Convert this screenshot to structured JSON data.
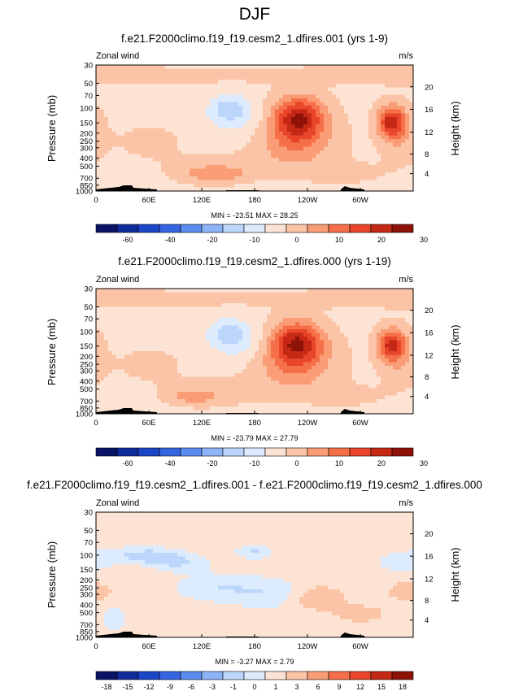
{
  "figure": {
    "title": "DJF"
  },
  "palette_common": [
    "#0a1466",
    "#0f2b9a",
    "#1c46c8",
    "#3464e0",
    "#5a8cf0",
    "#8db4f8",
    "#bcd6fb",
    "#dcebfd",
    "#fde3d4",
    "#fcc4a6",
    "#fa9c76",
    "#f57048",
    "#e8452a",
    "#c52815",
    "#8f1209"
  ],
  "chart_data": [
    {
      "type": "heatmap",
      "id": "p1",
      "title": "f.e21.F2000climo.f19_f19.cesm2_1.dfires.001 (yrs 1-9)",
      "left_label": "Zonal wind",
      "right_label": "m/s",
      "ylabel": "Pressure (mb)",
      "ylabel_right": "Height (km)",
      "stats": "MIN = -23.51   MAX = 28.25",
      "x_ticks": [
        "0",
        "60E",
        "120E",
        "180",
        "120W",
        "60W"
      ],
      "x_tick_values": [
        0,
        60,
        120,
        180,
        240,
        300
      ],
      "x_range": [
        0,
        360
      ],
      "y_ticks": [
        "30",
        "50",
        "70",
        "100",
        "150",
        "200",
        "250",
        "300",
        "400",
        "500",
        "700",
        "850",
        "1000"
      ],
      "y_tick_values": [
        30,
        50,
        70,
        100,
        150,
        200,
        250,
        300,
        400,
        500,
        700,
        850,
        1000
      ],
      "y_range": [
        30,
        1000
      ],
      "y_scale": "log",
      "height_ticks": [
        "20",
        "16",
        "12",
        "8",
        "4"
      ],
      "colorbar_labels": [
        "-60",
        "-40",
        "-20",
        "-10",
        "0",
        "10",
        "20",
        "30"
      ],
      "levels": [
        -70,
        -60,
        -50,
        -40,
        -30,
        -20,
        -15,
        -10,
        -5,
        0,
        5,
        10,
        15,
        20,
        25,
        30
      ],
      "features": [
        {
          "lon": 150,
          "lev": 100,
          "slon": 22,
          "slev": 0.38,
          "amp": -10
        },
        {
          "lon": 165,
          "lev": 140,
          "slon": 34,
          "slev": 0.55,
          "amp": -5
        },
        {
          "lon": 45,
          "lev": 800,
          "slon": 30,
          "slev": 0.3,
          "amp": -3
        },
        {
          "lon": 205,
          "lev": 1000,
          "slon": 35,
          "slev": 0.28,
          "amp": -3
        },
        {
          "lon": 230,
          "lev": 130,
          "slon": 28,
          "slev": 0.58,
          "amp": 23
        },
        {
          "lon": 225,
          "lev": 250,
          "slon": 45,
          "slev": 0.8,
          "amp": 10
        },
        {
          "lon": 335,
          "lev": 145,
          "slon": 15,
          "slev": 0.42,
          "amp": 22
        },
        {
          "lon": 345,
          "lev": 200,
          "slon": 22,
          "slev": 0.7,
          "amp": 6
        },
        {
          "lon": 135,
          "lev": 620,
          "slon": 35,
          "slev": 0.22,
          "amp": 8
        },
        {
          "lon": 135,
          "lev": 550,
          "slon": 55,
          "slev": 0.4,
          "amp": 3
        },
        {
          "lon": 30,
          "lev": 40,
          "slon": 120,
          "slev": 0.22,
          "amp": 4
        },
        {
          "lon": 270,
          "lev": 40,
          "slon": 120,
          "slev": 0.22,
          "amp": 3
        },
        {
          "lon": 60,
          "lev": 250,
          "slon": 45,
          "slev": 0.55,
          "amp": 2
        },
        {
          "lon": 290,
          "lev": 600,
          "slon": 45,
          "slev": 0.35,
          "amp": 2
        }
      ],
      "base": -1.2
    },
    {
      "type": "heatmap",
      "id": "p2",
      "title": "f.e21.F2000climo.f19_f19.cesm2_1.dfires.000 (yrs 1-19)",
      "left_label": "Zonal wind",
      "right_label": "m/s",
      "ylabel": "Pressure (mb)",
      "ylabel_right": "Height (km)",
      "stats": "MIN = -23.79   MAX = 27.79",
      "x_ticks": [
        "0",
        "60E",
        "120E",
        "180",
        "120W",
        "60W"
      ],
      "x_tick_values": [
        0,
        60,
        120,
        180,
        240,
        300
      ],
      "x_range": [
        0,
        360
      ],
      "y_ticks": [
        "30",
        "50",
        "70",
        "100",
        "150",
        "200",
        "250",
        "300",
        "400",
        "500",
        "700",
        "850",
        "1000"
      ],
      "y_tick_values": [
        30,
        50,
        70,
        100,
        150,
        200,
        250,
        300,
        400,
        500,
        700,
        850,
        1000
      ],
      "y_range": [
        30,
        1000
      ],
      "y_scale": "log",
      "height_ticks": [
        "20",
        "16",
        "12",
        "8",
        "4"
      ],
      "colorbar_labels": [
        "-60",
        "-40",
        "-20",
        "-10",
        "0",
        "10",
        "20",
        "30"
      ],
      "levels": [
        -70,
        -60,
        -50,
        -40,
        -30,
        -20,
        -15,
        -10,
        -5,
        0,
        5,
        10,
        15,
        20,
        25,
        30
      ],
      "features": [
        {
          "lon": 150,
          "lev": 105,
          "slon": 22,
          "slev": 0.38,
          "amp": -10
        },
        {
          "lon": 165,
          "lev": 140,
          "slon": 34,
          "slev": 0.55,
          "amp": -5
        },
        {
          "lon": 45,
          "lev": 800,
          "slon": 30,
          "slev": 0.3,
          "amp": -3
        },
        {
          "lon": 205,
          "lev": 1000,
          "slon": 35,
          "slev": 0.28,
          "amp": -3
        },
        {
          "lon": 228,
          "lev": 135,
          "slon": 28,
          "slev": 0.58,
          "amp": 23
        },
        {
          "lon": 225,
          "lev": 250,
          "slon": 45,
          "slev": 0.8,
          "amp": 10
        },
        {
          "lon": 335,
          "lev": 145,
          "slon": 15,
          "slev": 0.42,
          "amp": 21
        },
        {
          "lon": 345,
          "lev": 200,
          "slon": 22,
          "slev": 0.7,
          "amp": 6
        },
        {
          "lon": 110,
          "lev": 620,
          "slon": 30,
          "slev": 0.2,
          "amp": 7
        },
        {
          "lon": 135,
          "lev": 550,
          "slon": 55,
          "slev": 0.4,
          "amp": 3
        },
        {
          "lon": 30,
          "lev": 40,
          "slon": 120,
          "slev": 0.22,
          "amp": 4
        },
        {
          "lon": 270,
          "lev": 40,
          "slon": 120,
          "slev": 0.22,
          "amp": 3
        },
        {
          "lon": 60,
          "lev": 250,
          "slon": 45,
          "slev": 0.55,
          "amp": 2
        },
        {
          "lon": 290,
          "lev": 600,
          "slon": 45,
          "slev": 0.35,
          "amp": 2
        }
      ],
      "base": -1.2
    },
    {
      "type": "heatmap",
      "id": "p3",
      "title": "f.e21.F2000climo.f19_f19.cesm2_1.dfires.001 - f.e21.F2000climo.f19_f19.cesm2_1.dfires.000",
      "left_label": "Zonal wind",
      "right_label": "m/s",
      "ylabel": "Pressure (mb)",
      "ylabel_right": "Height (km)",
      "stats": "MIN = -3.27   MAX = 2.79",
      "x_ticks": [
        "0",
        "60E",
        "120E",
        "180",
        "120W",
        "60W"
      ],
      "x_tick_values": [
        0,
        60,
        120,
        180,
        240,
        300
      ],
      "x_range": [
        0,
        360
      ],
      "y_ticks": [
        "30",
        "50",
        "70",
        "100",
        "150",
        "200",
        "250",
        "300",
        "400",
        "500",
        "700",
        "850",
        "1000"
      ],
      "y_tick_values": [
        30,
        50,
        70,
        100,
        150,
        200,
        250,
        300,
        400,
        500,
        700,
        850,
        1000
      ],
      "y_range": [
        30,
        1000
      ],
      "y_scale": "log",
      "height_ticks": [
        "20",
        "16",
        "12",
        "8",
        "4"
      ],
      "colorbar_labels": [
        "-18",
        "-15",
        "-12",
        "-9",
        "-6",
        "-3",
        "-1",
        "0",
        "1",
        "3",
        "6",
        "9",
        "12",
        "15",
        "18"
      ],
      "levels": [
        -21,
        -18,
        -15,
        -12,
        -9,
        -6,
        -3,
        -1,
        0,
        1,
        3,
        6,
        9,
        12,
        15,
        18
      ],
      "features": [
        {
          "lon": 50,
          "lev": 100,
          "slon": 35,
          "slev": 0.2,
          "amp": -1.8
        },
        {
          "lon": 80,
          "lev": 110,
          "slon": 25,
          "slev": 0.2,
          "amp": -1.6
        },
        {
          "lon": 180,
          "lev": 92,
          "slon": 18,
          "slev": 0.16,
          "amp": -1.6
        },
        {
          "lon": 140,
          "lev": 250,
          "slon": 45,
          "slev": 0.35,
          "amp": -1.3
        },
        {
          "lon": 200,
          "lev": 300,
          "slon": 40,
          "slev": 0.4,
          "amp": -1.2
        },
        {
          "lon": 350,
          "lev": 120,
          "slon": 25,
          "slev": 0.25,
          "amp": -1.3
        },
        {
          "lon": 100,
          "lev": 130,
          "slon": 30,
          "slev": 0.22,
          "amp": -1.0
        },
        {
          "lon": 20,
          "lev": 600,
          "slon": 12,
          "slev": 0.3,
          "amp": -1.2
        },
        {
          "lon": 250,
          "lev": 330,
          "slon": 32,
          "slev": 0.35,
          "amp": 1.6
        },
        {
          "lon": 355,
          "lev": 280,
          "slon": 25,
          "slev": 0.3,
          "amp": 1.3
        },
        {
          "lon": 300,
          "lev": 520,
          "slon": 30,
          "slev": 0.25,
          "amp": 1.2
        }
      ],
      "base": 0.4
    }
  ]
}
